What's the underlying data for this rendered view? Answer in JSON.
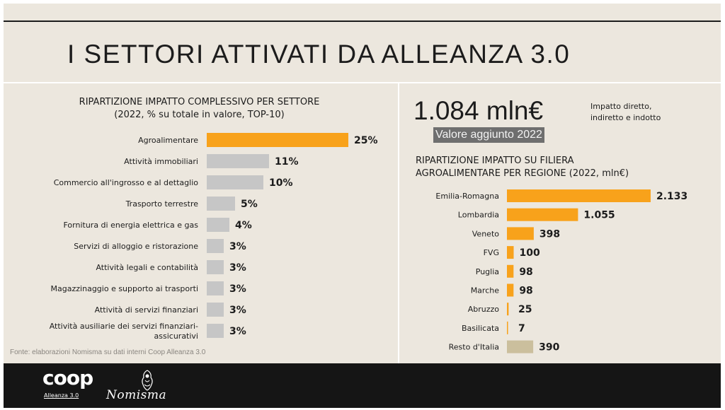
{
  "title": "I SETTORI ATTIVATI DA ALLEANZA 3.0",
  "kpi": {
    "value": "1.084 mln€",
    "description_lines": [
      "Impatto diretto,",
      "indiretto e indotto"
    ],
    "badge": "Valore aggiunto 2022"
  },
  "source": "Fonte: elaborazioni Nomisma su dati interni Coop Alleanza 3.0",
  "logos": {
    "coop": "coop",
    "coop_sub": "Alleanza 3.0",
    "nomisma": "Nomisma"
  },
  "chart_data": [
    {
      "type": "bar",
      "orientation": "horizontal",
      "title_lines": [
        "RIPARTIZIONE IMPATTO COMPLESSIVO PER SETTORE",
        "(2022, % su totale in valore, TOP-10)"
      ],
      "categories": [
        [
          "Agroalimentare"
        ],
        [
          "Attività immobiliari"
        ],
        [
          "Commercio all'ingrosso e al dettaglio"
        ],
        [
          "Trasporto terrestre"
        ],
        [
          "Fornitura di energia elettrica e gas"
        ],
        [
          "Servizi di alloggio e ristorazione"
        ],
        [
          "Attività legali e contabilità"
        ],
        [
          "Magazzinaggio e supporto ai trasporti"
        ],
        [
          "Attività di servizi finanziari"
        ],
        [
          "Attività ausiliarie dei servizi finanziari-",
          "assicurativi"
        ]
      ],
      "values": [
        25,
        11,
        10,
        5,
        4,
        3,
        3,
        3,
        3,
        3
      ],
      "value_labels": [
        "25%",
        "11%",
        "10%",
        "5%",
        "4%",
        "3%",
        "3%",
        "3%",
        "3%",
        "3%"
      ],
      "colors": [
        "#f8a21b",
        "#c6c6c6",
        "#c6c6c6",
        "#c6c6c6",
        "#c6c6c6",
        "#c6c6c6",
        "#c6c6c6",
        "#c6c6c6",
        "#c6c6c6",
        "#c6c6c6"
      ]
    },
    {
      "type": "bar",
      "orientation": "horizontal",
      "title_lines": [
        "RIPARTIZIONE IMPATTO SU FILIERA",
        "AGROALIMENTARE PER REGIONE (2022, mln€)"
      ],
      "categories": [
        [
          "Emilia-Romagna"
        ],
        [
          "Lombardia"
        ],
        [
          "Veneto"
        ],
        [
          "FVG"
        ],
        [
          "Puglia"
        ],
        [
          "Marche"
        ],
        [
          "Abruzzo"
        ],
        [
          "Basilicata"
        ],
        [
          "Resto d'Italia"
        ]
      ],
      "values": [
        2133,
        1055,
        398,
        100,
        98,
        98,
        25,
        7,
        390
      ],
      "value_labels": [
        "2.133",
        "1.055",
        "398",
        "100",
        "98",
        "98",
        "25",
        "7",
        "390"
      ],
      "colors": [
        "#f8a21b",
        "#f8a21b",
        "#f8a21b",
        "#f8a21b",
        "#f8a21b",
        "#f8a21b",
        "#f8a21b",
        "#f8a21b",
        "#cbbf9d"
      ]
    }
  ]
}
